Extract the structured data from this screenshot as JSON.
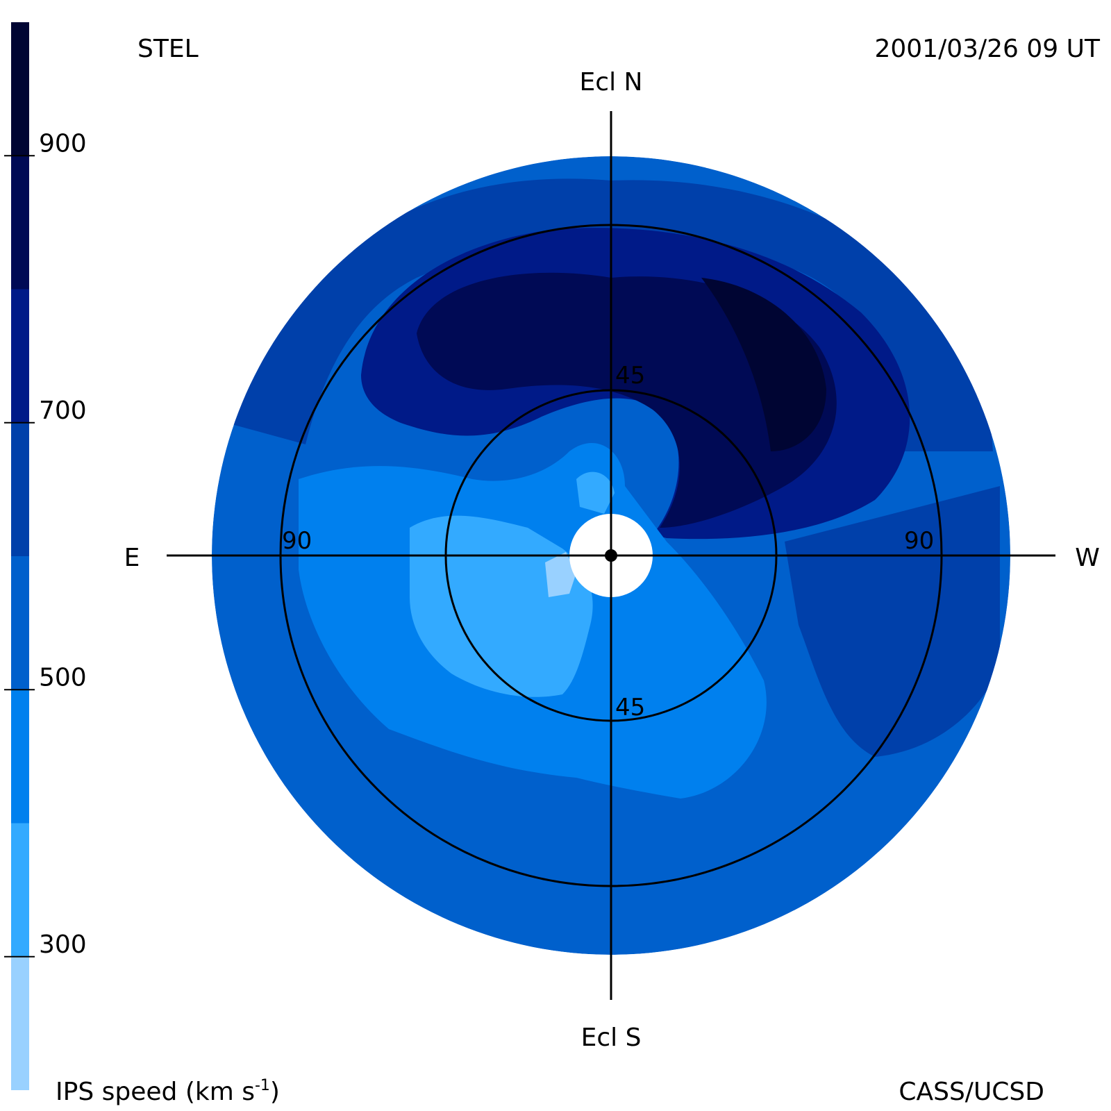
{
  "header": {
    "left": "STEL",
    "right": "2001/03/26 09 UT"
  },
  "footer": {
    "left_prefix": "IPS speed (km s",
    "left_sup": "-1",
    "left_suffix": ")",
    "right": "CASS/UCSD"
  },
  "directions": {
    "north": "Ecl N",
    "south": "Ecl S",
    "east": "E",
    "west": "W"
  },
  "chart_data": {
    "type": "heatmap",
    "title": "",
    "projection": "fisheye sky map centered on the Sun",
    "colorbar": {
      "label": "IPS speed (km s-1)",
      "vmin": 200,
      "vmax": 1000,
      "ticks": [
        300,
        500,
        700,
        900
      ],
      "tick_labels": [
        "300",
        "500",
        "700",
        "900"
      ],
      "levels": [
        {
          "from": 200,
          "to": 300,
          "color": "#99d1ff"
        },
        {
          "from": 300,
          "to": 400,
          "color": "#33aaff"
        },
        {
          "from": 400,
          "to": 500,
          "color": "#0080ee"
        },
        {
          "from": 500,
          "to": 600,
          "color": "#0060cc"
        },
        {
          "from": 600,
          "to": 700,
          "color": "#0040aa"
        },
        {
          "from": 700,
          "to": 800,
          "color": "#001a88"
        },
        {
          "from": 800,
          "to": 900,
          "color": "#000a55"
        },
        {
          "from": 900,
          "to": 1000,
          "color": "#000533"
        }
      ]
    },
    "rings": [
      {
        "elongation_deg": 45,
        "labels": [
          "45",
          "45"
        ]
      },
      {
        "elongation_deg": 90,
        "labels": [
          "90",
          "90"
        ]
      }
    ],
    "regions": [
      {
        "speed": 550,
        "where": "outer annulus and southern sky"
      },
      {
        "speed": 650,
        "where": "northern band and western limb"
      },
      {
        "speed": 750,
        "where": "northern arc"
      },
      {
        "speed": 850,
        "where": "northern high-speed arc"
      },
      {
        "speed": 950,
        "where": "northwest core"
      },
      {
        "speed": 450,
        "where": "inner east and central south"
      },
      {
        "speed": 350,
        "where": "near-Sun east and south"
      },
      {
        "speed": 250,
        "where": "small patch just east of the Sun"
      }
    ]
  }
}
